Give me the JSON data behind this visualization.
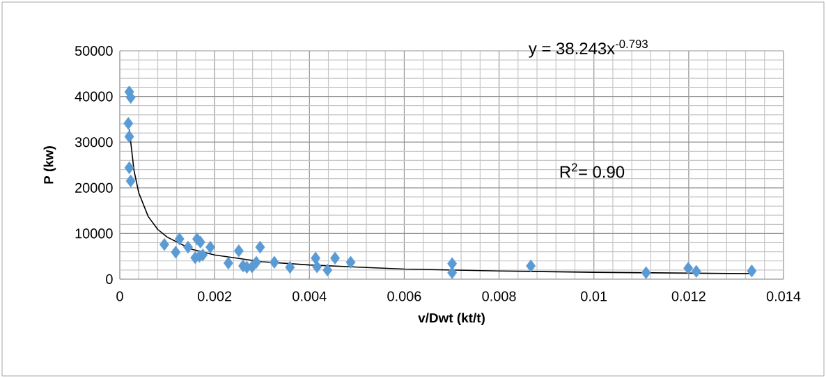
{
  "chart_data": {
    "type": "scatter",
    "xlabel": "v/Dwt (kt/t)",
    "ylabel": "P (kw)",
    "xlim": [
      0,
      0.014
    ],
    "xticks": [
      0,
      0.002,
      0.004,
      0.006,
      0.008,
      0.01,
      0.012,
      0.014
    ],
    "ylim": [
      0,
      50000
    ],
    "yticks": [
      0,
      10000,
      20000,
      30000,
      40000,
      50000
    ],
    "grid": true,
    "marker": "diamond",
    "annotations": [
      "y = 38.243x$^{-0.793}$",
      "R$^{2}$= 0.90"
    ],
    "series": [
      {
        "color": "#5b9bd5",
        "x": [
          0.0002,
          0.00023,
          0.00018,
          0.0002,
          0.0002,
          0.00023,
          0.00094,
          0.00118,
          0.00126,
          0.00144,
          0.00159,
          0.00163,
          0.0017,
          0.00168,
          0.00175,
          0.00191,
          0.00229,
          0.00251,
          0.0026,
          0.00268,
          0.00279,
          0.00288,
          0.00296,
          0.00326,
          0.00359,
          0.00413,
          0.00416,
          0.00438,
          0.00454,
          0.00487,
          0.00701,
          0.00701,
          0.00867,
          0.0111,
          0.01199,
          0.01216,
          0.01333
        ],
        "values": [
          41000,
          39800,
          34100,
          31200,
          24400,
          21500,
          7600,
          5900,
          8800,
          7000,
          4700,
          8800,
          8100,
          5000,
          5300,
          7000,
          3500,
          6200,
          2900,
          2600,
          2700,
          3700,
          7000,
          3700,
          2600,
          4600,
          2700,
          2000,
          4600,
          3700,
          3400,
          1400,
          2900,
          1400,
          2400,
          1700,
          1800
        ]
      },
      {
        "type": "line",
        "color": "#000000",
        "marker": "none",
        "x": [
          0.0002,
          0.0003,
          0.0004,
          0.0006,
          0.0008,
          0.001,
          0.0015,
          0.002,
          0.003,
          0.004,
          0.006,
          0.008,
          0.01,
          0.0133
        ],
        "values": [
          32800,
          23800,
          18900,
          13700,
          10900,
          9200,
          6600,
          5300,
          3800,
          3100,
          2200,
          1800,
          1500,
          1200
        ]
      }
    ]
  }
}
